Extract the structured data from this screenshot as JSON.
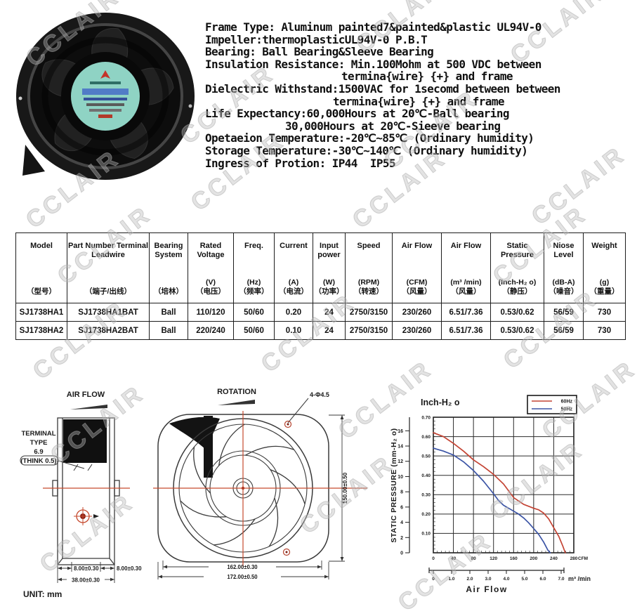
{
  "watermark": {
    "text": "CCLAIR"
  },
  "specs": {
    "lines": [
      {
        "text": "Frame Type: Aluminum painted7&painted&plastic UL94V-0",
        "indent": 0
      },
      {
        "text": "Impeller:thermoplasticUL94V-0 P.B.T",
        "indent": 0
      },
      {
        "text": "Bearing: Ball Bearing&Sleeve Bearing",
        "indent": 0
      },
      {
        "text": "Insulation Resistance: Min.100Mohm at 500 VDC between",
        "indent": 0
      },
      {
        "text": "termina{wire} {+} and frame",
        "indent": 194
      },
      {
        "text": "Dielectric Withstand:1500VAC for 1secomd between between",
        "indent": 0
      },
      {
        "text": "termina{wire} {+} and frame",
        "indent": 182
      },
      {
        "text": "Life Expectancy:60,000Hours at 20℃-Ball bearing",
        "indent": 0
      },
      {
        "text": "30,000Hours at 20℃-Sieeve bearing",
        "indent": 114
      },
      {
        "text": "Opetaeion Temperature:-20℃~85℃ (Ordinary humidity)",
        "indent": 0
      },
      {
        "text": "Storage Temperature:-30℃~140℃ (Ordinary humidity)",
        "indent": 0
      },
      {
        "text": "Ingress of Protion: IP44  IP55",
        "indent": 0
      }
    ]
  },
  "table": {
    "columns": [
      {
        "en": "Model",
        "unit": "",
        "cn": "（型号）"
      },
      {
        "en": "Part Number Terminal Leadwire",
        "unit": "",
        "cn": "（端子/出线）"
      },
      {
        "en": "Bearing System",
        "unit": "",
        "cn": "（培林）"
      },
      {
        "en": "Rated Voltage",
        "unit": "(V)",
        "cn": "（电压）"
      },
      {
        "en": "Freq.",
        "unit": "(Hz)",
        "cn": "（频率）"
      },
      {
        "en": "Current",
        "unit": "(A)",
        "cn": "（电流）"
      },
      {
        "en": "Input power",
        "unit": "(W)",
        "cn": "（功率）"
      },
      {
        "en": "Speed",
        "unit": "(RPM)",
        "cn": "（转速）"
      },
      {
        "en": "Air Flow",
        "unit": "(CFM)",
        "cn": "（风量）"
      },
      {
        "en": "Air Flow",
        "unit": "(m³ /min)",
        "cn": "（风量）"
      },
      {
        "en": "Static Pressure",
        "unit": "(Inch-H₂ o)",
        "cn": "（静压）"
      },
      {
        "en": "Niose Level",
        "unit": "(dB-A)",
        "cn": "（噪音）"
      },
      {
        "en": "Weight",
        "unit": "(g)",
        "cn": "（重量）"
      }
    ],
    "rows": [
      [
        "SJ1738HA1",
        "SJ1738HA1BAT",
        "Ball",
        "110/120",
        "50/60",
        "0.20",
        "24",
        "2750/3150",
        "230/260",
        "6.51/7.36",
        "0.53/0.62",
        "56/59",
        "730"
      ],
      [
        "SJ1738HA2",
        "SJ1738HA2BAT",
        "Ball",
        "220/240",
        "50/60",
        "0.10",
        "24",
        "2750/3150",
        "230/260",
        "6.51/7.36",
        "0.53/0.62",
        "56/59",
        "730"
      ]
    ]
  },
  "drawings": {
    "side_view": {
      "air_flow_label": "AIR FLOW",
      "terminal_label_lines": [
        "TERMINAL",
        "TYPE",
        "6.9",
        "(THINK 0.5)"
      ],
      "dim_left": "8.00±0.30",
      "dim_right": "8.00±0.30",
      "dim_total": "38.00±0.30",
      "unit_label": "UNIT: mm"
    },
    "front_view": {
      "rotation_label": "ROTATION",
      "holes_label": "4-Φ4.5",
      "dim_height": "150.00±0.50",
      "dim_holes": "162.00±0.30",
      "dim_overall": "172.00±0.50"
    }
  },
  "chart_data": {
    "type": "line",
    "title": "Inch-H₂ o",
    "xlabel": "Air Flow",
    "ylabel": "STATIC PRESSURE (mm-H₂ o)",
    "xlim": [
      0,
      280
    ],
    "ylim": [
      0,
      0.7
    ],
    "grid": true,
    "x_axis_primary": {
      "unit": "CFM",
      "ticks": [
        0,
        40,
        80,
        120,
        160,
        200,
        240,
        280
      ]
    },
    "x_axis_secondary": {
      "unit": "m³ /min",
      "ticks": [
        "0",
        "1.0",
        "2.0",
        "3.0",
        "4.0",
        "5.0",
        "6.0",
        "7.0"
      ]
    },
    "y_axis_inner": {
      "unit": "Inch-H₂O",
      "ticks": [
        "0.70",
        "0.60",
        "0.50",
        "0.40",
        "0.30",
        "0.20",
        "0.10"
      ]
    },
    "y_axis_outer": {
      "unit": "mm-H₂O",
      "ticks": [
        16,
        14,
        12,
        10,
        8,
        6,
        4,
        2,
        0
      ]
    },
    "legend": {
      "position": "top-right"
    },
    "series": [
      {
        "name": "60Hz",
        "color": "#c44434",
        "x": [
          0,
          20,
          40,
          60,
          80,
          100,
          120,
          140,
          160,
          180,
          200,
          210,
          220,
          230,
          240,
          250,
          258,
          263
        ],
        "y": [
          0.62,
          0.6,
          0.565,
          0.525,
          0.48,
          0.445,
          0.405,
          0.355,
          0.285,
          0.25,
          0.23,
          0.222,
          0.205,
          0.175,
          0.13,
          0.085,
          0.035,
          0.0
        ]
      },
      {
        "name": "50Hz",
        "color": "#3b54a5",
        "x": [
          0,
          20,
          40,
          60,
          80,
          100,
          120,
          130,
          140,
          160,
          170,
          180,
          190,
          200,
          210,
          220,
          228,
          233
        ],
        "y": [
          0.54,
          0.525,
          0.505,
          0.47,
          0.425,
          0.37,
          0.305,
          0.27,
          0.245,
          0.215,
          0.2,
          0.18,
          0.155,
          0.125,
          0.095,
          0.055,
          0.015,
          0.0
        ]
      }
    ]
  }
}
